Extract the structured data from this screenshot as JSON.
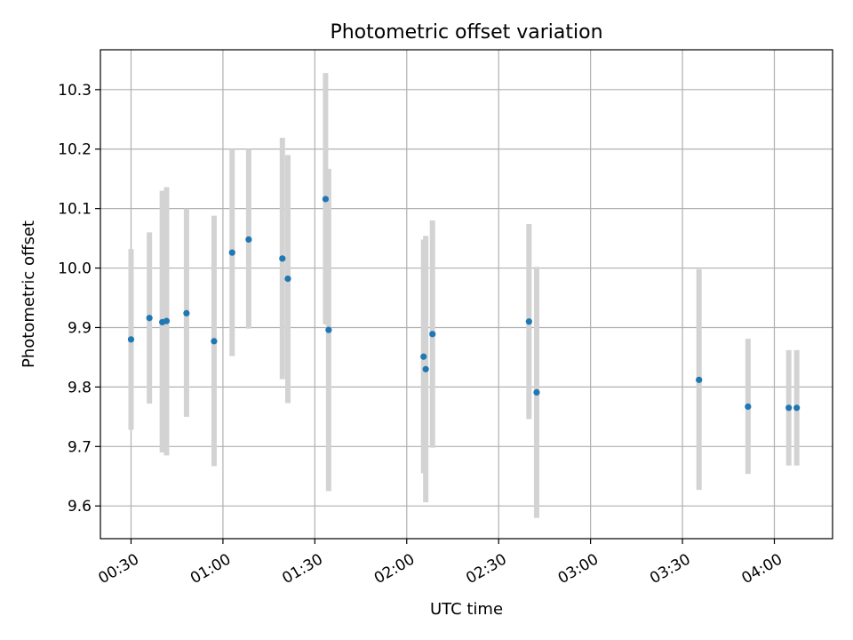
{
  "chart_data": {
    "type": "scatter",
    "title": "Photometric offset variation",
    "xlabel": "UTC time",
    "ylabel": "Photometric offset",
    "x_unit": "minutes",
    "xlim": [
      20,
      259
    ],
    "ylim": [
      9.545,
      10.367
    ],
    "xticks": [
      {
        "value": 30,
        "label": "00:30"
      },
      {
        "value": 60,
        "label": "01:00"
      },
      {
        "value": 90,
        "label": "01:30"
      },
      {
        "value": 120,
        "label": "02:00"
      },
      {
        "value": 150,
        "label": "02:30"
      },
      {
        "value": 180,
        "label": "03:00"
      },
      {
        "value": 210,
        "label": "03:30"
      },
      {
        "value": 240,
        "label": "04:00"
      }
    ],
    "yticks": [
      {
        "value": 9.6,
        "label": "9.6"
      },
      {
        "value": 9.7,
        "label": "9.7"
      },
      {
        "value": 9.8,
        "label": "9.8"
      },
      {
        "value": 9.9,
        "label": "9.9"
      },
      {
        "value": 10.0,
        "label": "10.0"
      },
      {
        "value": 10.1,
        "label": "10.1"
      },
      {
        "value": 10.2,
        "label": "10.2"
      },
      {
        "value": 10.3,
        "label": "10.3"
      }
    ],
    "grid": true,
    "marker_color": "#1f77b4",
    "errorbar_color": "#d3d3d3",
    "points": [
      {
        "x": 30.0,
        "y": 9.88,
        "lo": 9.728,
        "hi": 10.032
      },
      {
        "x": 36.0,
        "y": 9.916,
        "lo": 9.772,
        "hi": 10.06
      },
      {
        "x": 40.2,
        "y": 9.909,
        "lo": 9.69,
        "hi": 10.13
      },
      {
        "x": 41.6,
        "y": 9.911,
        "lo": 9.685,
        "hi": 10.136
      },
      {
        "x": 48.1,
        "y": 9.924,
        "lo": 9.75,
        "hi": 10.1
      },
      {
        "x": 57.1,
        "y": 9.877,
        "lo": 9.667,
        "hi": 10.088
      },
      {
        "x": 63.0,
        "y": 10.026,
        "lo": 9.852,
        "hi": 10.2
      },
      {
        "x": 68.4,
        "y": 10.048,
        "lo": 9.898,
        "hi": 10.2
      },
      {
        "x": 79.4,
        "y": 10.016,
        "lo": 9.813,
        "hi": 10.219
      },
      {
        "x": 81.2,
        "y": 9.982,
        "lo": 9.773,
        "hi": 10.19
      },
      {
        "x": 93.5,
        "y": 10.116,
        "lo": 9.905,
        "hi": 10.328
      },
      {
        "x": 94.5,
        "y": 9.896,
        "lo": 9.625,
        "hi": 10.167
      },
      {
        "x": 125.5,
        "y": 9.851,
        "lo": 9.655,
        "hi": 10.048
      },
      {
        "x": 126.2,
        "y": 9.83,
        "lo": 9.606,
        "hi": 10.054
      },
      {
        "x": 128.4,
        "y": 9.889,
        "lo": 9.698,
        "hi": 10.08
      },
      {
        "x": 159.9,
        "y": 9.91,
        "lo": 9.746,
        "hi": 10.074
      },
      {
        "x": 162.4,
        "y": 9.791,
        "lo": 9.58,
        "hi": 10.002
      },
      {
        "x": 215.4,
        "y": 9.812,
        "lo": 9.627,
        "hi": 9.998
      },
      {
        "x": 231.4,
        "y": 9.767,
        "lo": 9.654,
        "hi": 9.881
      },
      {
        "x": 244.7,
        "y": 9.765,
        "lo": 9.668,
        "hi": 9.862
      },
      {
        "x": 247.3,
        "y": 9.765,
        "lo": 9.668,
        "hi": 9.862
      }
    ]
  }
}
